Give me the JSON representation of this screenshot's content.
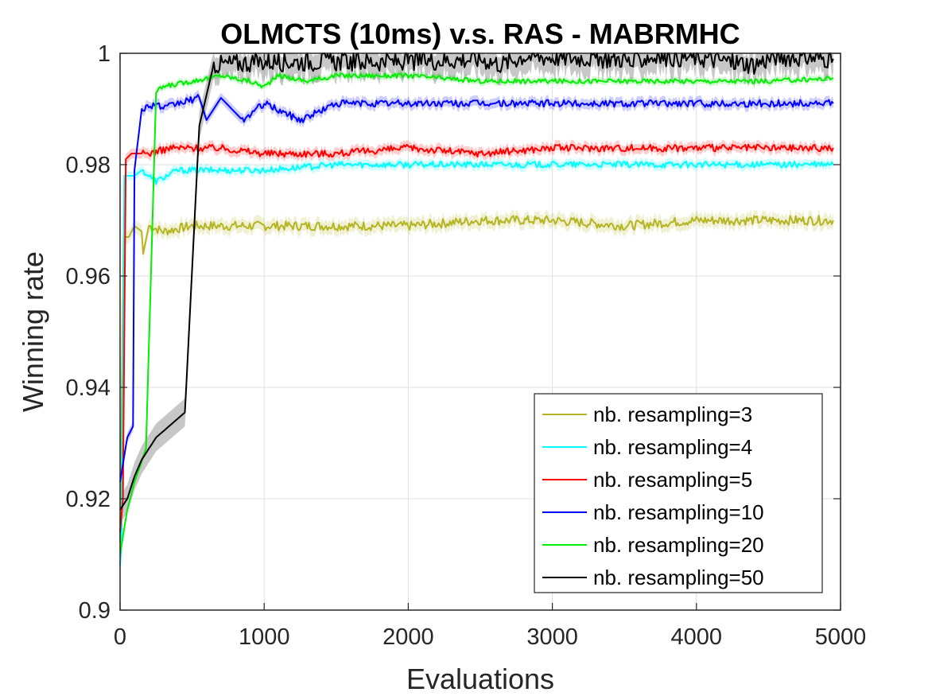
{
  "chart_data": {
    "type": "line",
    "title": "OLMCTS (10ms) v.s. RAS - MABRMHC",
    "xlabel": "Evaluations",
    "ylabel": "Winning rate",
    "xlim": [
      0,
      5000
    ],
    "ylim": [
      0.9,
      1.0
    ],
    "xticks": [
      0,
      1000,
      2000,
      3000,
      4000,
      5000
    ],
    "xtick_labels": [
      "0",
      "1000",
      "2000",
      "3000",
      "4000",
      "5000"
    ],
    "yticks": [
      0.9,
      0.92,
      0.94,
      0.96,
      0.98,
      1.0
    ],
    "ytick_labels": [
      "0.9",
      "0.92",
      "0.94",
      "0.96",
      "0.98",
      "1"
    ],
    "grid": true,
    "legend_position": "bottom-right",
    "series": [
      {
        "name": "nb. resampling=3",
        "label": "nb. resampling=3",
        "color": "#b5b523",
        "band": 0.0012,
        "x": [
          0,
          25,
          60,
          100,
          150,
          160,
          200,
          300,
          500,
          1000,
          1500,
          2000,
          2500,
          3000,
          3500,
          4000,
          4500,
          4950
        ],
        "y": [
          0.912,
          0.967,
          0.967,
          0.969,
          0.968,
          0.964,
          0.969,
          0.968,
          0.969,
          0.969,
          0.969,
          0.969,
          0.97,
          0.97,
          0.969,
          0.97,
          0.97,
          0.97
        ]
      },
      {
        "name": "nb. resampling=4",
        "label": "nb. resampling=4",
        "color": "#00ffff",
        "band": 0.0008,
        "x": [
          0,
          10,
          30,
          50,
          100,
          150,
          250,
          400,
          600,
          1000,
          1500,
          2000,
          2500,
          3000,
          3500,
          4000,
          4500,
          4950
        ],
        "y": [
          0.908,
          0.912,
          0.978,
          0.978,
          0.978,
          0.979,
          0.977,
          0.979,
          0.979,
          0.979,
          0.98,
          0.98,
          0.98,
          0.98,
          0.98,
          0.98,
          0.98,
          0.98
        ]
      },
      {
        "name": "nb. resampling=5",
        "label": "nb. resampling=5",
        "color": "#ff0000",
        "band": 0.0009,
        "x": [
          0,
          20,
          40,
          80,
          200,
          350,
          500,
          700,
          1000,
          1500,
          2000,
          2500,
          3000,
          3500,
          4000,
          4500,
          4950
        ],
        "y": [
          0.914,
          0.92,
          0.981,
          0.982,
          0.982,
          0.983,
          0.983,
          0.983,
          0.982,
          0.982,
          0.983,
          0.982,
          0.983,
          0.983,
          0.983,
          0.983,
          0.983
        ]
      },
      {
        "name": "nb. resampling=10",
        "label": "nb. resampling=10",
        "color": "#0000ff",
        "band": 0.0009,
        "x": [
          0,
          50,
          90,
          100,
          150,
          250,
          300,
          400,
          550,
          600,
          700,
          850,
          1000,
          1250,
          1500,
          2000,
          2500,
          3000,
          3500,
          4000,
          4500,
          4950
        ],
        "y": [
          0.923,
          0.931,
          0.933,
          0.979,
          0.99,
          0.991,
          0.99,
          0.991,
          0.992,
          0.988,
          0.992,
          0.988,
          0.991,
          0.988,
          0.991,
          0.991,
          0.991,
          0.991,
          0.991,
          0.991,
          0.991,
          0.991
        ]
      },
      {
        "name": "nb. resampling=20",
        "label": "nb. resampling=20",
        "color": "#00ee00",
        "band": 0.0006,
        "x": [
          0,
          50,
          100,
          180,
          250,
          300,
          500,
          700,
          900,
          1000,
          1100,
          1300,
          1500,
          2000,
          2500,
          3000,
          3500,
          4000,
          4500,
          4950
        ],
        "y": [
          0.91,
          0.918,
          0.923,
          0.929,
          0.993,
          0.994,
          0.995,
          0.996,
          0.995,
          0.994,
          0.996,
          0.995,
          0.996,
          0.996,
          0.995,
          0.995,
          0.995,
          0.995,
          0.995,
          0.9955
        ]
      },
      {
        "name": "nb. resampling=50",
        "label": "nb. resampling=50",
        "color": "#000000",
        "band": 0.0025,
        "x": [
          0,
          50,
          100,
          150,
          250,
          450,
          550,
          650,
          700,
          1000,
          1500,
          2000,
          2500,
          2650,
          2800,
          3000,
          3500,
          3550,
          3650,
          4000,
          4400,
          4550,
          4950
        ],
        "y": [
          0.918,
          0.92,
          0.924,
          0.927,
          0.931,
          0.9355,
          0.987,
          0.998,
          0.998,
          0.9985,
          0.9985,
          0.9985,
          0.999,
          0.998,
          0.9995,
          0.9993,
          0.999,
          0.998,
          0.9993,
          0.9993,
          0.998,
          0.9995,
          0.999
        ]
      }
    ]
  }
}
